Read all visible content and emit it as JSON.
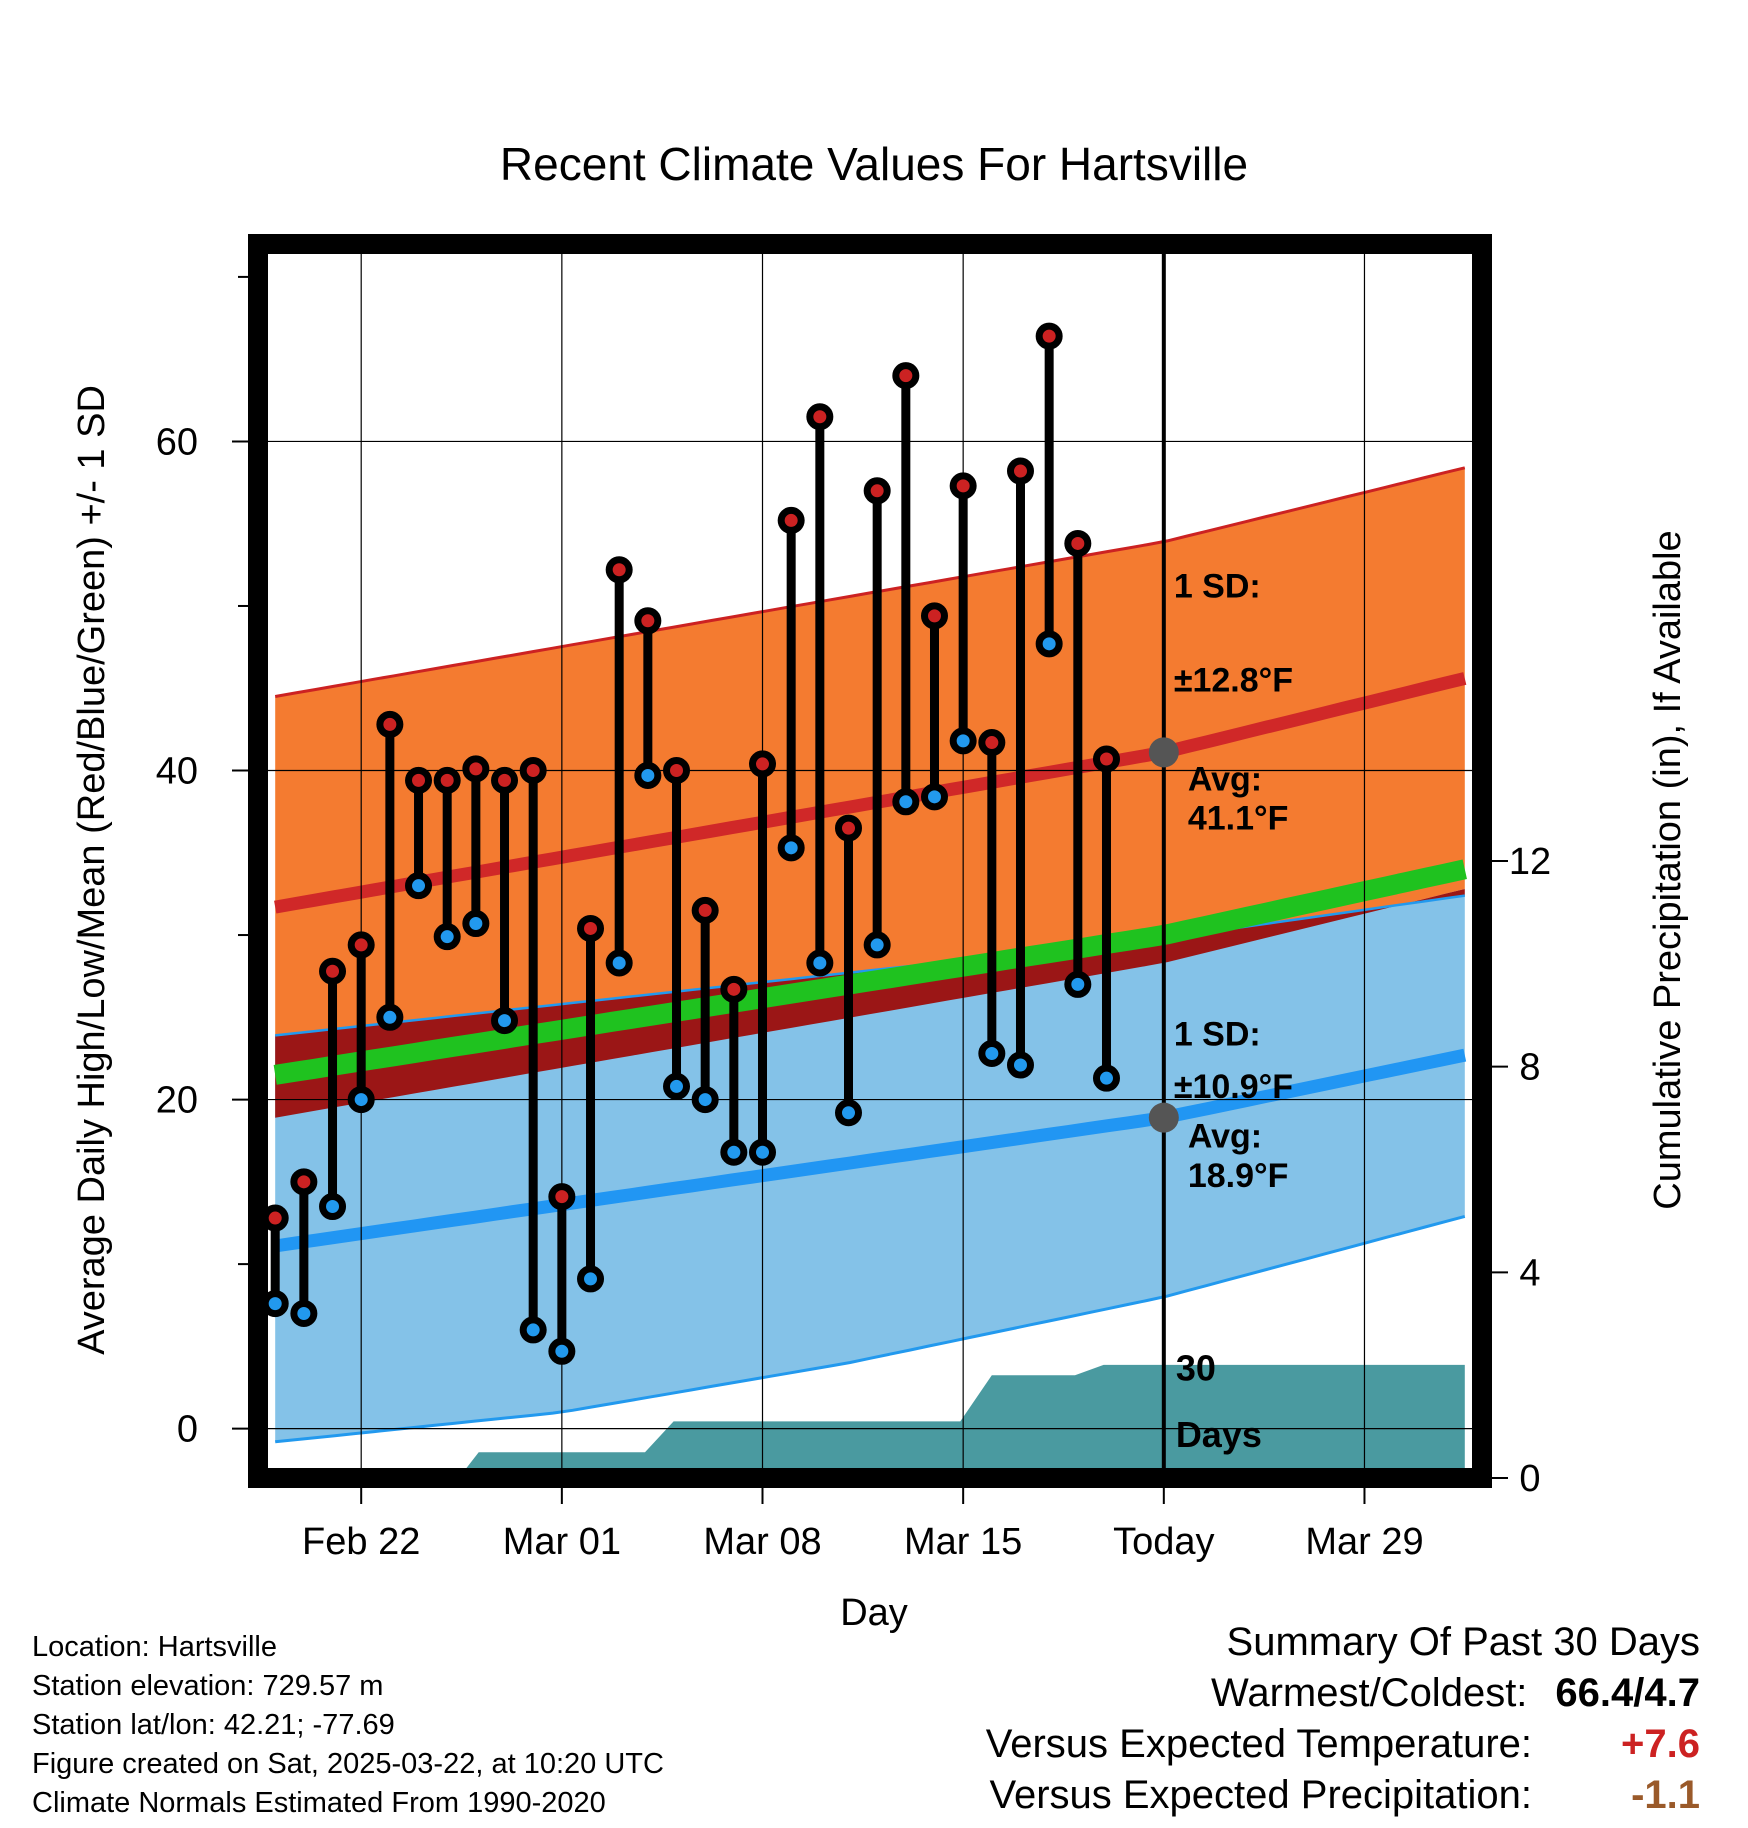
{
  "chart_data": {
    "type": "line",
    "title": "Recent Climate Values For Hartsville",
    "xlabel": "Day",
    "ylabel": "Average Daily High/Low/Mean (Red/Blue/Green) +/- 1 SD",
    "y2label": "Cumulative Precipitation (in), If Available",
    "ylim": [
      -3,
      72
    ],
    "y2lim": [
      0,
      24
    ],
    "xlim": [
      -0.6,
      42.1
    ],
    "x_ticks": [
      {
        "day": 3,
        "label": "Feb 22"
      },
      {
        "day": 10,
        "label": "Mar 01"
      },
      {
        "day": 17,
        "label": "Mar 08"
      },
      {
        "day": 24,
        "label": "Mar 15"
      },
      {
        "day": 31,
        "label": "Today"
      },
      {
        "day": 38,
        "label": "Mar 29"
      }
    ],
    "y_ticks": [
      0,
      20,
      40,
      60
    ],
    "y_minor_ticks": [
      10,
      30,
      50,
      70
    ],
    "y2_ticks": [
      0,
      4,
      8,
      12
    ],
    "today_day": 31,
    "normals": {
      "high_avg": [
        [
          0,
          31.7
        ],
        [
          31,
          41.1
        ],
        [
          41.5,
          45.6
        ]
      ],
      "high_sd": 12.8,
      "low_avg": [
        [
          0,
          11.1
        ],
        [
          31,
          18.9
        ],
        [
          41.5,
          22.7
        ]
      ],
      "low_sd_upper": [
        [
          0,
          23.9
        ],
        [
          31,
          29.8
        ],
        [
          41.5,
          32.4
        ]
      ],
      "low_sd_lower": [
        [
          0,
          -0.8
        ],
        [
          10,
          1.0
        ],
        [
          20,
          4.0
        ],
        [
          31,
          8.0
        ],
        [
          41.5,
          12.9
        ]
      ],
      "mean_avg": [
        [
          0,
          21.5
        ],
        [
          31,
          30.0
        ],
        [
          41.5,
          34.0
        ]
      ]
    },
    "annotations": {
      "high_sd_label": "1 SD:",
      "high_sd_value": "±12.8°F",
      "high_avg_label": "Avg:",
      "high_avg_value": "41.1°F",
      "low_sd_label": "1 SD:",
      "low_sd_value": "±10.9°F",
      "low_avg_label": "Avg:",
      "low_avg_value": "18.9°F",
      "precip_label_1": "30",
      "precip_label_2": "Days"
    },
    "series": [
      {
        "name": "Daily High",
        "color": "#cc2222",
        "values": [
          12.8,
          15.0,
          27.8,
          29.4,
          42.8,
          39.4,
          39.4,
          40.1,
          39.4,
          40.0,
          14.1,
          30.4,
          52.2,
          49.1,
          40.0,
          31.5,
          26.7,
          40.4,
          55.2,
          61.5,
          36.5,
          57.0,
          64.0,
          49.4,
          57.3,
          41.7,
          58.2,
          66.4,
          53.8,
          40.7
        ]
      },
      {
        "name": "Daily Low",
        "color": "#2299ee",
        "values": [
          7.6,
          7.0,
          13.5,
          20.0,
          25.0,
          33.0,
          29.9,
          30.7,
          24.8,
          6.0,
          4.7,
          9.1,
          28.3,
          39.7,
          20.8,
          20.0,
          16.8,
          16.8,
          35.3,
          28.3,
          19.2,
          29.4,
          38.1,
          38.4,
          41.8,
          22.8,
          22.1,
          47.7,
          27.0,
          21.3
        ]
      },
      {
        "name": "Cumulative Precipitation",
        "color": "#4a9aa0",
        "steps": [
          [
            6.4,
            0
          ],
          [
            7.1,
            0.5
          ],
          [
            12.9,
            0.5
          ],
          [
            13.9,
            1.1
          ],
          [
            23.9,
            1.1
          ],
          [
            25.0,
            2.0
          ],
          [
            27.9,
            2.0
          ],
          [
            28.9,
            2.2
          ],
          [
            41.5,
            2.2
          ]
        ]
      }
    ]
  },
  "footer": {
    "location": "Location: Hartsville",
    "elevation": "Station elevation: 729.57 m",
    "latlon": "Station lat/lon: 42.21; -77.69",
    "created": "Figure created on Sat, 2025-03-22, at 10:20 UTC",
    "normals": "Climate Normals Estimated From 1990-2020"
  },
  "summary": {
    "title": "Summary Of Past 30 Days",
    "warmest_label": "Warmest/Coldest:",
    "warmest_value": "66.4/4.7",
    "temp_label": "Versus Expected Temperature:",
    "temp_value": "+7.6",
    "temp_color": "#cc2222",
    "precip_label": "Versus Expected Precipitation:",
    "precip_value": "-1.1",
    "precip_color": "#9a5a2a"
  }
}
